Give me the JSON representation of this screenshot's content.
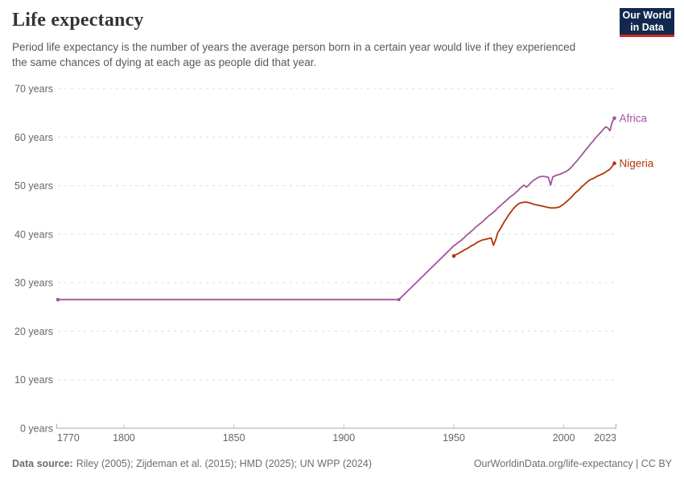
{
  "header": {
    "title": "Life expectancy",
    "subtitle": "Period life expectancy is the number of years the average person born in a certain year would live if they experienced the same chances of dying at each age as people did that year."
  },
  "logo": {
    "line1": "Our World",
    "line2": "in Data",
    "bg_color": "#12294e",
    "accent_color": "#d42b21"
  },
  "footer": {
    "datasource_label": "Data source:",
    "datasource_text": "Riley (2005); Zijdeman et al. (2015); HMD (2025); UN WPP (2024)",
    "license": "OurWorldinData.org/life-expectancy | CC BY"
  },
  "chart_data": {
    "type": "line",
    "title": "Life expectancy",
    "xlabel": "",
    "ylabel": "",
    "xlim": [
      1770,
      2023
    ],
    "ylim": [
      0,
      70
    ],
    "x_ticks": [
      1770,
      1800,
      1850,
      1900,
      1950,
      2000,
      2023
    ],
    "y_ticks": [
      0,
      10,
      20,
      30,
      40,
      50,
      60,
      70
    ],
    "y_tick_suffix": " years",
    "grid": "horizontal-dashed",
    "legend_position": "end-of-line",
    "series": [
      {
        "name": "Africa",
        "color": "#a2559c",
        "points": [
          [
            1770,
            26.5
          ],
          [
            1925,
            26.5
          ],
          [
            1950,
            37.6
          ],
          [
            1951,
            37.9
          ],
          [
            1952,
            38.3
          ],
          [
            1953,
            38.6
          ],
          [
            1954,
            39.0
          ],
          [
            1955,
            39.4
          ],
          [
            1956,
            39.9
          ],
          [
            1957,
            40.2
          ],
          [
            1958,
            40.6
          ],
          [
            1959,
            41.0
          ],
          [
            1960,
            41.5
          ],
          [
            1961,
            41.8
          ],
          [
            1962,
            42.2
          ],
          [
            1963,
            42.5
          ],
          [
            1964,
            43.0
          ],
          [
            1965,
            43.4
          ],
          [
            1966,
            43.8
          ],
          [
            1967,
            44.1
          ],
          [
            1968,
            44.5
          ],
          [
            1969,
            44.9
          ],
          [
            1970,
            45.4
          ],
          [
            1971,
            45.8
          ],
          [
            1972,
            46.2
          ],
          [
            1973,
            46.6
          ],
          [
            1974,
            47.0
          ],
          [
            1975,
            47.4
          ],
          [
            1976,
            47.8
          ],
          [
            1977,
            48.1
          ],
          [
            1978,
            48.5
          ],
          [
            1979,
            48.9
          ],
          [
            1980,
            49.4
          ],
          [
            1981,
            49.8
          ],
          [
            1982,
            50.1
          ],
          [
            1983,
            49.7
          ],
          [
            1984,
            50.1
          ],
          [
            1985,
            50.6
          ],
          [
            1986,
            51.0
          ],
          [
            1987,
            51.3
          ],
          [
            1988,
            51.6
          ],
          [
            1989,
            51.8
          ],
          [
            1990,
            51.9
          ],
          [
            1991,
            51.9
          ],
          [
            1992,
            51.8
          ],
          [
            1993,
            51.7
          ],
          [
            1994,
            50.1
          ],
          [
            1995,
            51.8
          ],
          [
            1996,
            52.0
          ],
          [
            1997,
            52.2
          ],
          [
            1998,
            52.3
          ],
          [
            1999,
            52.5
          ],
          [
            2000,
            52.7
          ],
          [
            2001,
            52.9
          ],
          [
            2002,
            53.2
          ],
          [
            2003,
            53.6
          ],
          [
            2004,
            54.1
          ],
          [
            2005,
            54.6
          ],
          [
            2006,
            55.1
          ],
          [
            2007,
            55.7
          ],
          [
            2008,
            56.2
          ],
          [
            2009,
            56.8
          ],
          [
            2010,
            57.4
          ],
          [
            2011,
            57.9
          ],
          [
            2012,
            58.5
          ],
          [
            2013,
            59.0
          ],
          [
            2014,
            59.6
          ],
          [
            2015,
            60.1
          ],
          [
            2016,
            60.6
          ],
          [
            2017,
            61.1
          ],
          [
            2018,
            61.6
          ],
          [
            2019,
            62.1
          ],
          [
            2020,
            61.9
          ],
          [
            2021,
            61.3
          ],
          [
            2022,
            63.1
          ],
          [
            2023,
            63.9
          ]
        ]
      },
      {
        "name": "Nigeria",
        "color": "#b13507",
        "points": [
          [
            1950,
            35.5
          ],
          [
            1951,
            35.8
          ],
          [
            1952,
            36.0
          ],
          [
            1953,
            36.3
          ],
          [
            1954,
            36.5
          ],
          [
            1955,
            36.8
          ],
          [
            1956,
            37.0
          ],
          [
            1957,
            37.3
          ],
          [
            1958,
            37.6
          ],
          [
            1959,
            37.8
          ],
          [
            1960,
            38.1
          ],
          [
            1961,
            38.4
          ],
          [
            1962,
            38.6
          ],
          [
            1963,
            38.8
          ],
          [
            1964,
            38.9
          ],
          [
            1965,
            39.0
          ],
          [
            1966,
            39.1
          ],
          [
            1967,
            39.2
          ],
          [
            1968,
            37.7
          ],
          [
            1969,
            38.8
          ],
          [
            1970,
            40.3
          ],
          [
            1971,
            41.0
          ],
          [
            1972,
            41.8
          ],
          [
            1973,
            42.6
          ],
          [
            1974,
            43.3
          ],
          [
            1975,
            44.0
          ],
          [
            1976,
            44.6
          ],
          [
            1977,
            45.2
          ],
          [
            1978,
            45.7
          ],
          [
            1979,
            46.1
          ],
          [
            1980,
            46.4
          ],
          [
            1981,
            46.5
          ],
          [
            1982,
            46.6
          ],
          [
            1983,
            46.6
          ],
          [
            1984,
            46.5
          ],
          [
            1985,
            46.4
          ],
          [
            1986,
            46.2
          ],
          [
            1987,
            46.1
          ],
          [
            1988,
            46.0
          ],
          [
            1989,
            45.9
          ],
          [
            1990,
            45.8
          ],
          [
            1991,
            45.7
          ],
          [
            1992,
            45.6
          ],
          [
            1993,
            45.5
          ],
          [
            1994,
            45.4
          ],
          [
            1995,
            45.4
          ],
          [
            1996,
            45.4
          ],
          [
            1997,
            45.5
          ],
          [
            1998,
            45.6
          ],
          [
            1999,
            45.9
          ],
          [
            2000,
            46.2
          ],
          [
            2001,
            46.6
          ],
          [
            2002,
            47.0
          ],
          [
            2003,
            47.4
          ],
          [
            2004,
            47.9
          ],
          [
            2005,
            48.4
          ],
          [
            2006,
            48.8
          ],
          [
            2007,
            49.2
          ],
          [
            2008,
            49.7
          ],
          [
            2009,
            50.1
          ],
          [
            2010,
            50.5
          ],
          [
            2011,
            50.9
          ],
          [
            2012,
            51.2
          ],
          [
            2013,
            51.4
          ],
          [
            2014,
            51.6
          ],
          [
            2015,
            51.9
          ],
          [
            2016,
            52.1
          ],
          [
            2017,
            52.3
          ],
          [
            2018,
            52.5
          ],
          [
            2019,
            52.8
          ],
          [
            2020,
            53.1
          ],
          [
            2021,
            53.4
          ],
          [
            2022,
            54.0
          ],
          [
            2023,
            54.6
          ]
        ]
      }
    ]
  }
}
